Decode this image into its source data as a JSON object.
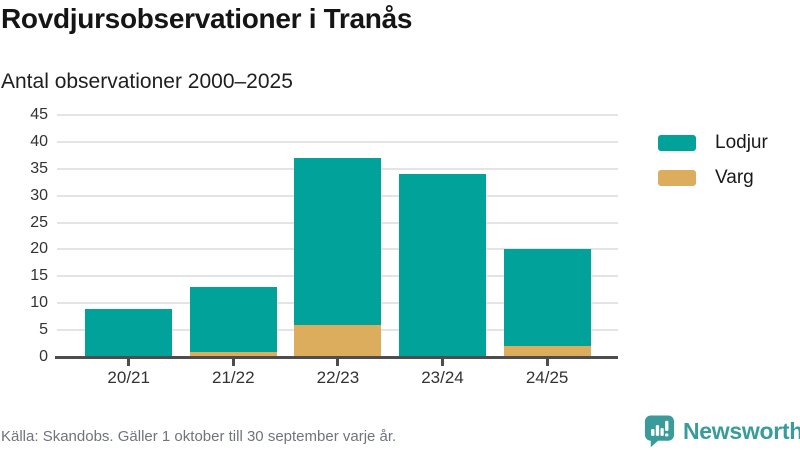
{
  "header": {
    "title": "Rovdjursobservationer i Tranås",
    "subtitle": "Antal observationer 2000–2025"
  },
  "chart_data": {
    "type": "bar",
    "stacked": true,
    "title": "Rovdjursobservationer i Tranås",
    "subtitle": "Antal observationer 2000–2025",
    "categories": [
      "20/21",
      "21/22",
      "22/23",
      "23/24",
      "24/25"
    ],
    "series": [
      {
        "name": "Lodjur",
        "color": "#00a29a",
        "values": [
          9,
          12,
          31,
          34,
          18
        ]
      },
      {
        "name": "Varg",
        "color": "#dcad5c",
        "values": [
          0,
          1,
          6,
          0,
          2
        ]
      }
    ],
    "stack_totals": [
      9,
      13,
      37,
      34,
      20
    ],
    "xlabel": "",
    "ylabel": "",
    "ylim": [
      0,
      45
    ],
    "yticks": [
      0,
      5,
      10,
      15,
      20,
      25,
      30,
      35,
      40,
      45
    ],
    "grid": true,
    "legend_position": "right"
  },
  "footer": {
    "source": "Källa: Skandobs. Gäller 1 oktober till 30 september varje år.",
    "brand": "Newsworthy"
  },
  "colors": {
    "lodjur": "#00a29a",
    "varg": "#dcad5c",
    "brand_teal": "#3a9b9b",
    "grid": "#e4e4e4",
    "axis": "#4d4d4d",
    "text_dark": "#151515",
    "text_muted": "#70747c"
  }
}
